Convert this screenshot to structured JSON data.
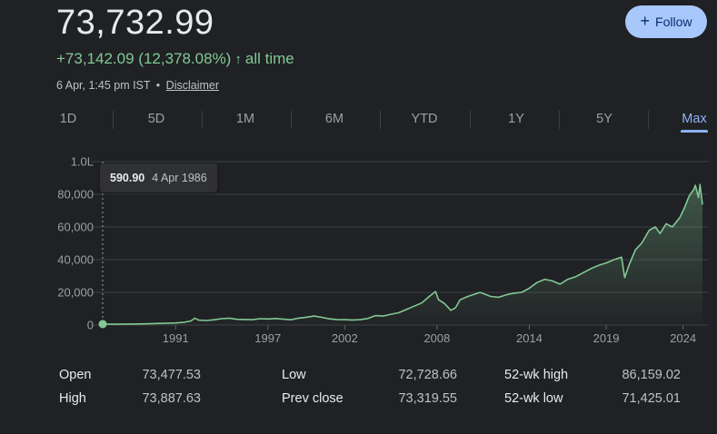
{
  "quote": {
    "price": "73,732.99",
    "change": "+73,142.09 (12,378.08%)",
    "period": "all time",
    "timestamp": "6 Apr, 1:45 pm IST",
    "separator": "•",
    "disclaimer": "Disclaimer"
  },
  "follow_button": {
    "label": "Follow"
  },
  "tabs": [
    "1D",
    "5D",
    "1M",
    "6M",
    "YTD",
    "1Y",
    "5Y",
    "Max"
  ],
  "active_tab": "Max",
  "tooltip": {
    "value": "590.90",
    "date": "4 Apr 1986"
  },
  "colors": {
    "background": "#202124",
    "line": "#81c995",
    "accent": "#8ab4f8",
    "follow_bg": "#a8c7fa"
  },
  "stats": {
    "open": {
      "label": "Open",
      "value": "73,477.53"
    },
    "high": {
      "label": "High",
      "value": "73,887.63"
    },
    "low": {
      "label": "Low",
      "value": "72,728.66"
    },
    "prev_close": {
      "label": "Prev close",
      "value": "73,319.55"
    },
    "wk52_high": {
      "label": "52-wk high",
      "value": "86,159.02"
    },
    "wk52_low": {
      "label": "52-wk low",
      "value": "71,425.01"
    }
  },
  "chart_data": {
    "type": "line",
    "title": "",
    "xlabel": "",
    "ylabel": "",
    "y_tick_labels": [
      "0",
      "20,000",
      "40,000",
      "60,000",
      "80,000",
      "1.0L"
    ],
    "y_ticks": [
      0,
      20000,
      40000,
      60000,
      80000,
      100000
    ],
    "ylim": [
      0,
      100000
    ],
    "x_tick_labels": [
      "1991",
      "1997",
      "2002",
      "2008",
      "2014",
      "2019",
      "2024"
    ],
    "x_ticks": [
      1991,
      1997,
      2002,
      2008,
      2014,
      2019,
      2024
    ],
    "xlim": [
      1986.26,
      2025.26
    ],
    "grid": true,
    "series": [
      {
        "x": [
          1986.26,
          1987.0,
          1988.0,
          1989.0,
          1990.0,
          1991.0,
          1991.5,
          1992.0,
          1992.25,
          1992.5,
          1993.0,
          1993.5,
          1994.0,
          1994.5,
          1995.0,
          1996.0,
          1996.5,
          1997.0,
          1997.5,
          1998.0,
          1998.5,
          1999.0,
          1999.5,
          2000.0,
          2000.5,
          2001.0,
          2001.5,
          2002.0,
          2002.5,
          2003.0,
          2003.5,
          2004.0,
          2004.5,
          2005.0,
          2005.5,
          2006.0,
          2006.5,
          2007.0,
          2007.5,
          2007.9,
          2008.1,
          2008.5,
          2008.9,
          2009.2,
          2009.5,
          2010.0,
          2010.8,
          2011.5,
          2012.0,
          2012.5,
          2013.0,
          2013.5,
          2014.0,
          2014.5,
          2015.0,
          2015.5,
          2016.0,
          2016.5,
          2017.0,
          2017.5,
          2018.0,
          2018.5,
          2019.0,
          2019.5,
          2020.0,
          2020.2,
          2020.5,
          2020.9,
          2021.3,
          2021.8,
          2022.2,
          2022.5,
          2022.9,
          2023.3,
          2023.8,
          2024.1,
          2024.4,
          2024.7,
          2024.8,
          2025.0,
          2025.1,
          2025.26
        ],
        "y": [
          591,
          500,
          600,
          750,
          1000,
          1300,
          1600,
          2500,
          4200,
          3000,
          2800,
          3200,
          3900,
          4200,
          3500,
          3300,
          3900,
          3700,
          4000,
          3600,
          3200,
          4200,
          4800,
          5500,
          4700,
          3800,
          3400,
          3300,
          3100,
          3300,
          4000,
          5800,
          5500,
          6600,
          7500,
          9500,
          11500,
          13500,
          17500,
          20500,
          15500,
          13000,
          9000,
          10500,
          15500,
          17500,
          20000,
          17500,
          17000,
          18500,
          19500,
          20000,
          22500,
          26000,
          28000,
          27000,
          25000,
          28000,
          29500,
          32000,
          34500,
          36500,
          38000,
          40000,
          41500,
          29000,
          37000,
          46000,
          50000,
          58000,
          60000,
          56000,
          62000,
          60000,
          66000,
          72000,
          79000,
          83000,
          85500,
          78000,
          86000,
          73733
        ]
      }
    ]
  }
}
